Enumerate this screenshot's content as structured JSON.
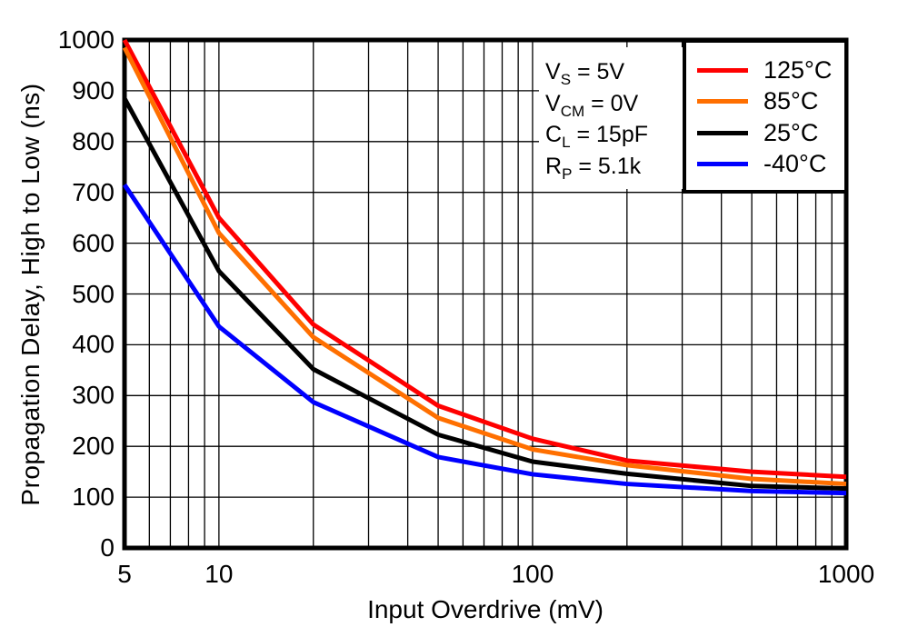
{
  "chart_data": {
    "type": "line",
    "xlabel": "Input Overdrive (mV)",
    "ylabel": "Propagation Delay, High to Low (ns)",
    "x_scale": "log",
    "y_scale": "linear",
    "xlim": [
      5,
      1000
    ],
    "ylim": [
      0,
      1000
    ],
    "grid": true,
    "legend_position": "top-right",
    "x_gridlines": [
      6,
      7,
      8,
      9,
      10,
      20,
      30,
      40,
      50,
      60,
      70,
      80,
      90,
      100,
      200,
      300,
      400,
      500,
      600,
      700,
      800,
      900
    ],
    "y_gridlines": [
      100,
      200,
      300,
      400,
      500,
      600,
      700,
      800,
      900
    ],
    "x_tick_labels": [
      {
        "v": 5,
        "label": "5"
      },
      {
        "v": 10,
        "label": "10"
      },
      {
        "v": 100,
        "label": "100"
      },
      {
        "v": 1000,
        "label": "1000"
      }
    ],
    "y_tick_labels": [
      {
        "v": 0,
        "label": "0"
      },
      {
        "v": 100,
        "label": "100"
      },
      {
        "v": 200,
        "label": "200"
      },
      {
        "v": 300,
        "label": "300"
      },
      {
        "v": 400,
        "label": "400"
      },
      {
        "v": 500,
        "label": "500"
      },
      {
        "v": 600,
        "label": "600"
      },
      {
        "v": 700,
        "label": "700"
      },
      {
        "v": 800,
        "label": "800"
      },
      {
        "v": 900,
        "label": "900"
      },
      {
        "v": 1000,
        "label": "1000"
      }
    ],
    "x": [
      5,
      10,
      20,
      50,
      100,
      200,
      500,
      1000
    ],
    "series": [
      {
        "name": "125°C",
        "color": "#ff0000",
        "values": [
          1000,
          650,
          440,
          280,
          215,
          172,
          150,
          140
        ]
      },
      {
        "name": "85°C",
        "color": "#ff6f00",
        "values": [
          985,
          620,
          415,
          256,
          194,
          163,
          136,
          126
        ]
      },
      {
        "name": "25°C",
        "color": "#000000",
        "values": [
          885,
          545,
          352,
          223,
          170,
          146,
          122,
          117
        ]
      },
      {
        "name": "-40°C",
        "color": "#0000ff",
        "values": [
          715,
          436,
          287,
          179,
          145,
          126,
          112,
          108
        ]
      }
    ]
  },
  "conditions": {
    "lines": [
      {
        "base": "V",
        "sub": "S",
        "rest": " = 5V"
      },
      {
        "base": "V",
        "sub": "CM",
        "rest": " = 0V"
      },
      {
        "base": "C",
        "sub": "L",
        "rest": " = 15pF"
      },
      {
        "base": "R",
        "sub": "P",
        "rest": " = 5.1k"
      }
    ]
  },
  "style": {
    "axis_color": "#000000",
    "grid_color": "#000000",
    "background": "#ffffff"
  }
}
